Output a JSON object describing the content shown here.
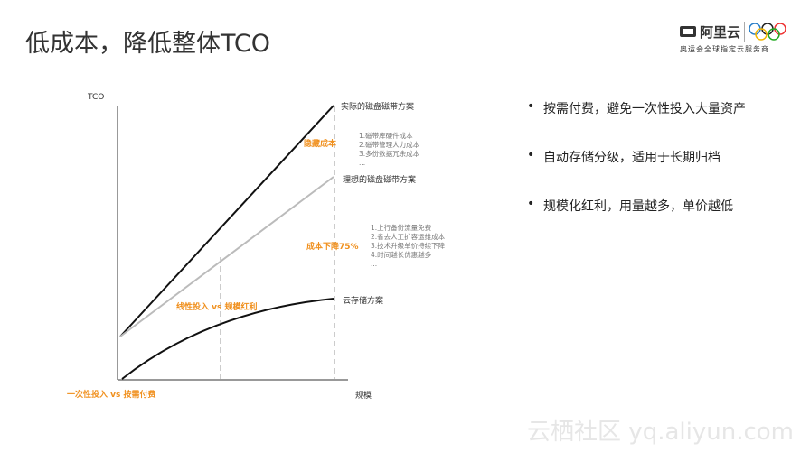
{
  "title": "低成本，降低整体TCO",
  "logo": {
    "brand": "阿里云",
    "tagline": "奥运会全球指定云服务商"
  },
  "bullets": [
    "按需付费，避免一次性投入大量资产",
    "自动存储分级，适用于长期归档",
    "规模化红利，用量越多，单价越低"
  ],
  "diagram": {
    "y_axis": "TCO",
    "x_axis": "规模",
    "lines": {
      "actual": "实际的磁盘磁带方案",
      "ideal": "理想的磁盘磁带方案",
      "cloud": "云存储方案"
    },
    "hidden_cost": {
      "label": "隐藏成本",
      "items": [
        "1.磁带库硬件成本",
        "2.磁带管理人力成本",
        "3.多份数据冗余成本",
        "..."
      ]
    },
    "reduction": {
      "label": "成本下降75%",
      "items": [
        "1.上行备份流量免费",
        "2.省去人工扩容运维成本",
        "3.技术升级单价持续下降",
        "4.时间越长优惠越多",
        "..."
      ]
    },
    "linear_vs_scale": "线性投入 vs 规模红利",
    "onetime_vs_ondemand": "一次性投入 vs 按需付费",
    "colors": {
      "actual": "#111111",
      "ideal": "#bbbbbb",
      "accent": "#f0901e"
    }
  },
  "watermark": "云栖社区 yq.aliyun.com"
}
